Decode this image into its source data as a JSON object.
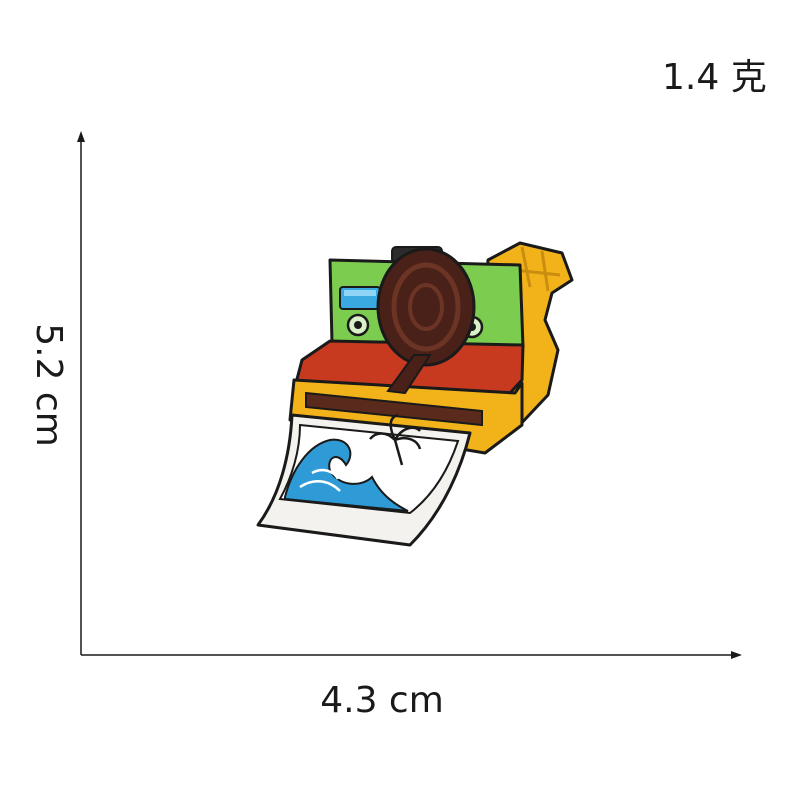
{
  "weight": "1.4 克",
  "dimensions": {
    "height": "5.2 cm",
    "width": "4.3 cm"
  },
  "colors": {
    "camera_top": "#7ccd4f",
    "camera_band": "#c73a20",
    "camera_body": "#f2b21a",
    "lens": "#4a2118",
    "viewfinder": "#3aa9e0",
    "photo_wave": "#2f9bd6",
    "outline": "#1a1a1a"
  },
  "image": {
    "subject": "embroidered-instant-camera-patch"
  }
}
